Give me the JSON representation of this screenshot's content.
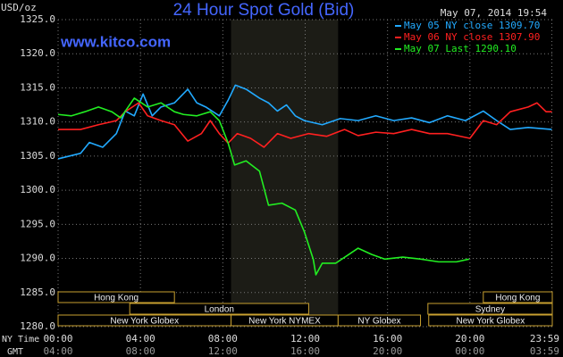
{
  "chart_data": {
    "type": "line",
    "title": "24 Hour Spot Gold (Bid)",
    "y_label": "USD/oz",
    "watermark": "www.kitco.com",
    "timestamp": "May 07, 2014 19:54",
    "x_label": "NY Time",
    "x2_label": "GMT",
    "xlim": [
      0,
      24
    ],
    "ylim": [
      1280,
      1325
    ],
    "yticks": [
      {
        "value": 1280,
        "label": "1280.0"
      },
      {
        "value": 1285,
        "label": "1285.0"
      },
      {
        "value": 1290,
        "label": "1290.0"
      },
      {
        "value": 1295,
        "label": "1295.0"
      },
      {
        "value": 1300,
        "label": "1300.0"
      },
      {
        "value": 1305,
        "label": "1305.0"
      },
      {
        "value": 1310,
        "label": "1310.0"
      },
      {
        "value": 1315,
        "label": "1315.0"
      },
      {
        "value": 1320,
        "label": "1320.0"
      },
      {
        "value": 1325,
        "label": "1325.0"
      }
    ],
    "xticks": [
      {
        "value": 0,
        "label": "00:00"
      },
      {
        "value": 4,
        "label": "04:00"
      },
      {
        "value": 8,
        "label": "08:00"
      },
      {
        "value": 12,
        "label": "12:00"
      },
      {
        "value": 16,
        "label": "16:00"
      },
      {
        "value": 20,
        "label": "20:00"
      },
      {
        "value": 23.98,
        "label": "23:59"
      }
    ],
    "x2ticks": [
      {
        "value": 0,
        "label": "04:00"
      },
      {
        "value": 4,
        "label": "08:00"
      },
      {
        "value": 8,
        "label": "12:00"
      },
      {
        "value": 12,
        "label": "16:00"
      },
      {
        "value": 16,
        "label": "20:00"
      },
      {
        "value": 20,
        "label": "00:00"
      },
      {
        "value": 23.98,
        "label": "03:59"
      }
    ],
    "grid": true,
    "legend": "top-right",
    "series": [
      {
        "name": "May 05 NY close 1309.70",
        "color": "#22aaff",
        "x": [
          0,
          1.09,
          1.52,
          2.17,
          2.83,
          3.26,
          3.7,
          4.13,
          4.57,
          5.0,
          5.65,
          6.3,
          6.74,
          7.17,
          7.83,
          8.26,
          8.61,
          9.13,
          9.78,
          10.22,
          10.65,
          11.09,
          11.52,
          11.96,
          12.83,
          13.7,
          14.57,
          15.43,
          16.3,
          17.17,
          18.04,
          18.91,
          19.78,
          20.65,
          21.3,
          21.96,
          22.83,
          23.98
        ],
        "values": [
          1304.6,
          1305.4,
          1307.0,
          1306.3,
          1308.3,
          1311.6,
          1310.9,
          1314.1,
          1310.9,
          1312.2,
          1312.8,
          1314.8,
          1312.8,
          1312.2,
          1310.9,
          1313.2,
          1315.4,
          1314.8,
          1313.5,
          1312.8,
          1311.6,
          1312.5,
          1310.9,
          1310.2,
          1309.6,
          1310.5,
          1310.2,
          1310.9,
          1310.2,
          1310.6,
          1309.9,
          1310.9,
          1310.2,
          1311.6,
          1310.2,
          1308.9,
          1309.2,
          1308.9
        ]
      },
      {
        "name": "May 06 NY close 1307.90",
        "color": "#ff2020",
        "x": [
          0,
          1.09,
          1.96,
          2.83,
          3.26,
          3.91,
          4.35,
          5.0,
          5.65,
          6.3,
          6.96,
          7.39,
          7.83,
          8.26,
          8.7,
          9.35,
          10.0,
          10.65,
          11.3,
          12.17,
          13.04,
          13.91,
          14.57,
          15.43,
          16.3,
          17.17,
          18.04,
          18.91,
          20.0,
          20.65,
          21.3,
          21.96,
          22.83,
          23.26,
          23.7,
          23.98
        ],
        "values": [
          1308.9,
          1308.9,
          1309.6,
          1310.2,
          1311.5,
          1312.8,
          1310.9,
          1310.2,
          1309.6,
          1307.2,
          1308.3,
          1310.2,
          1308.3,
          1306.9,
          1308.3,
          1307.6,
          1306.3,
          1308.3,
          1307.6,
          1308.3,
          1307.9,
          1308.9,
          1308.0,
          1308.5,
          1308.3,
          1308.9,
          1308.3,
          1308.3,
          1307.6,
          1310.2,
          1309.6,
          1311.5,
          1312.2,
          1312.8,
          1311.5,
          1311.5
        ]
      },
      {
        "name": "May 07 Last 1290.10",
        "color": "#22ee22",
        "x": [
          0,
          0.65,
          1.3,
          1.96,
          2.61,
          3.04,
          3.7,
          4.35,
          5.0,
          5.65,
          6.09,
          6.74,
          7.39,
          7.83,
          8.26,
          8.57,
          9.13,
          9.78,
          10.22,
          10.87,
          11.52,
          11.96,
          12.39,
          12.52,
          12.83,
          13.48,
          14.13,
          14.57,
          15.22,
          15.87,
          16.74,
          17.61,
          18.48,
          19.35,
          19.96
        ],
        "values": [
          1311.1,
          1310.9,
          1311.5,
          1312.2,
          1311.5,
          1310.6,
          1313.5,
          1312.2,
          1312.8,
          1311.5,
          1311.1,
          1310.9,
          1311.5,
          1310.2,
          1306.9,
          1303.7,
          1304.3,
          1302.8,
          1297.8,
          1298.1,
          1297.1,
          1293.9,
          1289.9,
          1287.6,
          1289.3,
          1289.3,
          1290.6,
          1291.5,
          1290.6,
          1289.9,
          1290.2,
          1289.9,
          1289.5,
          1289.5,
          1289.9
        ]
      }
    ],
    "session_rows": [
      [
        {
          "label": "Hong Kong",
          "start": 0,
          "end": 5.65
        },
        {
          "label": "Hong Kong",
          "start": 20.65,
          "end": 24
        }
      ],
      [
        {
          "label": "London",
          "start": 3.48,
          "end": 12.17
        },
        {
          "label": "Sydney",
          "start": 17.96,
          "end": 24
        }
      ],
      [
        {
          "label": "New York Globex",
          "start": 0,
          "end": 8.4
        },
        {
          "label": "New York NYMEX",
          "start": 8.4,
          "end": 13.6,
          "highlight": true
        },
        {
          "label": "NY Globex",
          "start": 13.6,
          "end": 17.6
        },
        {
          "label": "New York Globex",
          "start": 18,
          "end": 24
        }
      ]
    ]
  }
}
